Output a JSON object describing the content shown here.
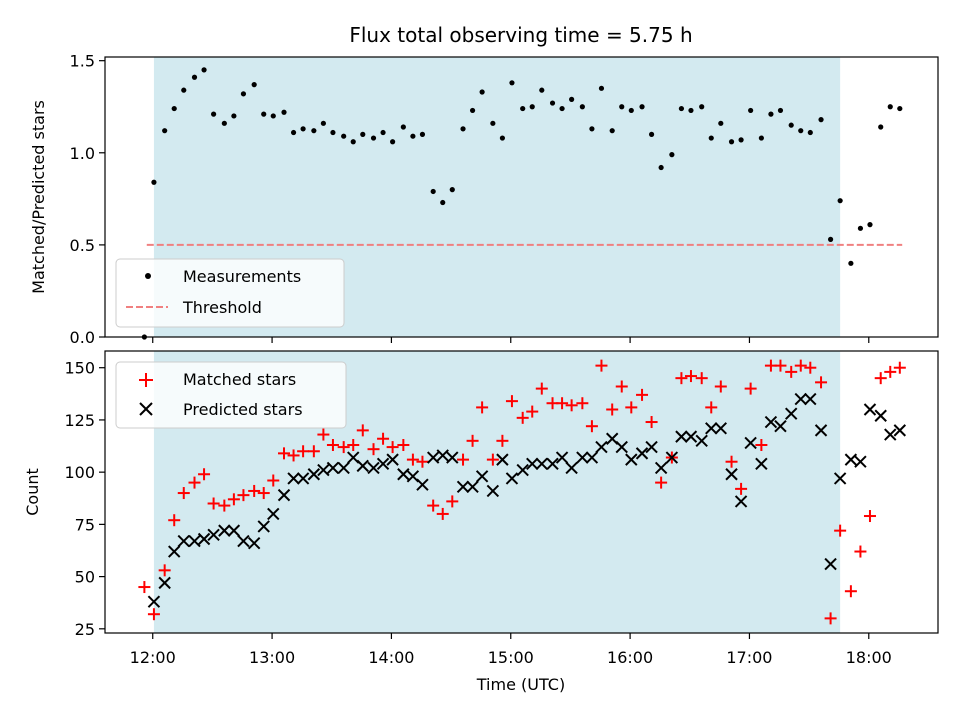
{
  "chart_data": {
    "title": "Flux total observing time = 5.75 h",
    "xlabel": "Time (UTC)",
    "x_unit": "hours UTC",
    "xlim": [
      11.6,
      18.58
    ],
    "xticks": [
      12,
      13,
      14,
      15,
      16,
      17,
      18
    ],
    "xtick_labels": [
      "12:00",
      "13:00",
      "14:00",
      "15:00",
      "16:00",
      "17:00",
      "18:00"
    ],
    "highlight_span": {
      "x": [
        12.01,
        17.76
      ],
      "color": "#d3eaf0"
    },
    "panels": [
      {
        "type": "scatter",
        "ylabel": "Matched/Predicted stars",
        "ylim": [
          0,
          1.52
        ],
        "yticks": [
          0.0,
          0.5,
          1.0,
          1.5
        ],
        "ytick_labels": [
          "0.0",
          "0.5",
          "1.0",
          "1.5"
        ],
        "legend": {
          "position": "lower-left",
          "entries": [
            "Measurements",
            "Threshold"
          ]
        },
        "series": [
          {
            "name": "Measurements",
            "marker": "dot",
            "color": "#000000",
            "x": [
              11.93,
              12.01,
              12.1,
              12.18,
              12.26,
              12.35,
              12.43,
              12.51,
              12.6,
              12.68,
              12.76,
              12.85,
              12.93,
              13.01,
              13.1,
              13.18,
              13.26,
              13.35,
              13.43,
              13.51,
              13.6,
              13.68,
              13.76,
              13.85,
              13.93,
              14.01,
              14.1,
              14.18,
              14.26,
              14.35,
              14.43,
              14.51,
              14.6,
              14.68,
              14.76,
              14.85,
              14.93,
              15.01,
              15.1,
              15.18,
              15.26,
              15.35,
              15.43,
              15.51,
              15.6,
              15.68,
              15.76,
              15.85,
              15.93,
              16.01,
              16.1,
              16.18,
              16.26,
              16.35,
              16.43,
              16.51,
              16.6,
              16.68,
              16.76,
              16.85,
              16.93,
              17.01,
              17.1,
              17.18,
              17.26,
              17.35,
              17.43,
              17.51,
              17.6,
              17.68,
              17.76,
              17.85,
              17.93,
              18.01,
              18.1,
              18.18,
              18.26
            ],
            "y": [
              0.0,
              0.84,
              1.12,
              1.24,
              1.34,
              1.41,
              1.45,
              1.21,
              1.16,
              1.2,
              1.32,
              1.37,
              1.21,
              1.2,
              1.22,
              1.11,
              1.13,
              1.12,
              1.16,
              1.11,
              1.09,
              1.06,
              1.1,
              1.08,
              1.11,
              1.06,
              1.14,
              1.09,
              1.1,
              0.79,
              0.73,
              0.8,
              1.13,
              1.23,
              1.33,
              1.16,
              1.08,
              1.38,
              1.24,
              1.25,
              1.34,
              1.27,
              1.24,
              1.29,
              1.25,
              1.13,
              1.35,
              1.12,
              1.25,
              1.23,
              1.25,
              1.1,
              0.92,
              0.99,
              1.24,
              1.23,
              1.25,
              1.08,
              1.16,
              1.06,
              1.07,
              1.23,
              1.08,
              1.21,
              1.23,
              1.15,
              1.12,
              1.11,
              1.18,
              0.53,
              0.74,
              0.4,
              0.59,
              0.61,
              1.14,
              1.25,
              1.24
            ]
          },
          {
            "name": "Threshold",
            "type": "line",
            "style": "dashed",
            "color": "#f08080",
            "x": [
              11.95,
              18.28
            ],
            "y": [
              0.5,
              0.5
            ]
          }
        ]
      },
      {
        "type": "scatter",
        "ylabel": "Count",
        "ylim": [
          23,
          158
        ],
        "yticks": [
          25,
          50,
          75,
          100,
          125,
          150
        ],
        "ytick_labels": [
          "25",
          "50",
          "75",
          "100",
          "125",
          "150"
        ],
        "legend": {
          "position": "upper-left",
          "entries": [
            "Matched stars",
            "Predicted stars"
          ]
        },
        "series": [
          {
            "name": "Matched stars",
            "marker": "plus",
            "color": "#ff0000",
            "x": [
              11.93,
              12.01,
              12.1,
              12.18,
              12.26,
              12.35,
              12.43,
              12.51,
              12.6,
              12.68,
              12.76,
              12.85,
              12.93,
              13.01,
              13.1,
              13.18,
              13.26,
              13.35,
              13.43,
              13.51,
              13.6,
              13.68,
              13.76,
              13.85,
              13.93,
              14.01,
              14.1,
              14.18,
              14.26,
              14.35,
              14.43,
              14.51,
              14.6,
              14.68,
              14.76,
              14.85,
              14.93,
              15.01,
              15.1,
              15.18,
              15.26,
              15.35,
              15.43,
              15.51,
              15.6,
              15.68,
              15.76,
              15.85,
              15.93,
              16.01,
              16.1,
              16.18,
              16.26,
              16.35,
              16.43,
              16.51,
              16.6,
              16.68,
              16.76,
              16.85,
              16.93,
              17.01,
              17.1,
              17.18,
              17.26,
              17.35,
              17.43,
              17.51,
              17.6,
              17.68,
              17.76,
              17.85,
              17.93,
              18.01,
              18.1,
              18.18,
              18.26
            ],
            "y": [
              45,
              32,
              53,
              77,
              90,
              95,
              99,
              85,
              84,
              87,
              89,
              91,
              90,
              96,
              109,
              108,
              110,
              110,
              118,
              113,
              112,
              113,
              120,
              111,
              116,
              112,
              113,
              106,
              105,
              84,
              80,
              86,
              106,
              115,
              131,
              106,
              115,
              134,
              126,
              129,
              140,
              133,
              133,
              132,
              133,
              122,
              151,
              130,
              141,
              131,
              137,
              124,
              95,
              107,
              145,
              146,
              145,
              131,
              141,
              105,
              92,
              140,
              113,
              151,
              151,
              148,
              151,
              150,
              143,
              30,
              72,
              43,
              62,
              79,
              145,
              148,
              150
            ]
          },
          {
            "name": "Predicted stars",
            "marker": "x",
            "color": "#000000",
            "x": [
              12.01,
              12.1,
              12.18,
              12.26,
              12.35,
              12.43,
              12.51,
              12.6,
              12.68,
              12.76,
              12.85,
              12.93,
              13.01,
              13.1,
              13.18,
              13.26,
              13.35,
              13.43,
              13.51,
              13.6,
              13.68,
              13.76,
              13.85,
              13.93,
              14.01,
              14.1,
              14.18,
              14.26,
              14.35,
              14.43,
              14.51,
              14.6,
              14.68,
              14.76,
              14.85,
              14.93,
              15.01,
              15.1,
              15.18,
              15.26,
              15.35,
              15.43,
              15.51,
              15.6,
              15.68,
              15.76,
              15.85,
              15.93,
              16.01,
              16.1,
              16.18,
              16.26,
              16.35,
              16.43,
              16.51,
              16.6,
              16.68,
              16.76,
              16.85,
              16.93,
              17.01,
              17.1,
              17.18,
              17.26,
              17.35,
              17.43,
              17.51,
              17.6,
              17.68,
              17.76,
              17.85,
              17.93,
              18.01,
              18.1,
              18.18,
              18.26
            ],
            "y": [
              38,
              47,
              62,
              67,
              67,
              68,
              70,
              72,
              72,
              67,
              66,
              74,
              80,
              89,
              97,
              97,
              99,
              101,
              102,
              102,
              107,
              103,
              102,
              104,
              106,
              99,
              98,
              94,
              107,
              108,
              107,
              93,
              93,
              98,
              91,
              106,
              97,
              101,
              104,
              104,
              104,
              107,
              102,
              107,
              107,
              112,
              116,
              112,
              106,
              109,
              112,
              102,
              107,
              117,
              117,
              115,
              121,
              121,
              99,
              86,
              114,
              104,
              124,
              122,
              128,
              135,
              135,
              120,
              56,
              97,
              106,
              105,
              130,
              127,
              118,
              120
            ]
          }
        ]
      }
    ]
  }
}
